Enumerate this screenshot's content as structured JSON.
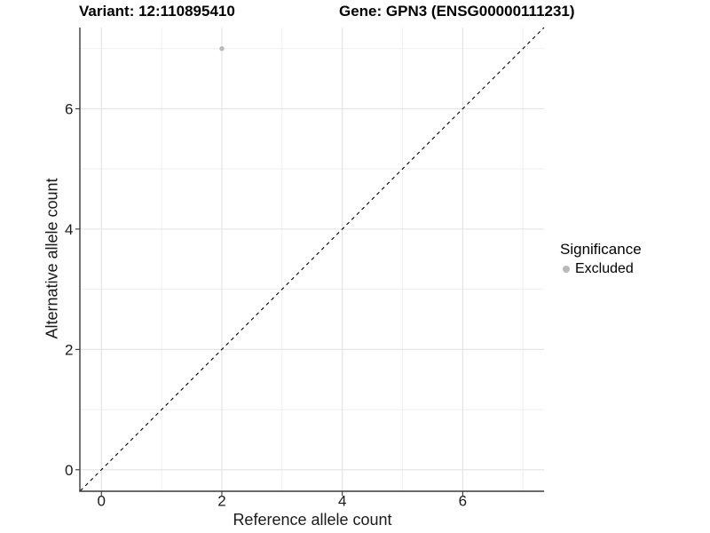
{
  "chart_data": {
    "type": "scatter",
    "title_left": "Variant: 12:110895410",
    "title_right": "Gene: GPN3 (ENSG00000111231)",
    "xlabel": "Reference allele count",
    "ylabel": "Alternative allele count",
    "xlim": [
      -0.35,
      7.35
    ],
    "ylim": [
      -0.35,
      7.35
    ],
    "x_major_ticks": [
      0,
      2,
      4,
      6
    ],
    "x_minor_ticks": [
      1,
      3,
      5,
      7
    ],
    "y_major_ticks": [
      0,
      2,
      4,
      6
    ],
    "y_minor_ticks": [
      1,
      3,
      5,
      7
    ],
    "grid": true,
    "points": [
      {
        "x": 2,
        "y": 7,
        "series": "Excluded"
      }
    ],
    "identity_line": {
      "slope": 1,
      "intercept": 0,
      "linetype": "dashed",
      "color": "#000000"
    },
    "legend": {
      "position": "right",
      "title": "Significance",
      "items": [
        {
          "label": "Excluded",
          "color": "#b9b9b9"
        }
      ]
    },
    "colors": {
      "background": "#ffffff",
      "point": "#b9b9b9",
      "grid_major": "#e3e3e3",
      "grid_minor": "#efefef",
      "axis_line": "#3a3a3a",
      "tick": "#333333",
      "text": "#1a1a1a",
      "title": "#000000"
    }
  }
}
